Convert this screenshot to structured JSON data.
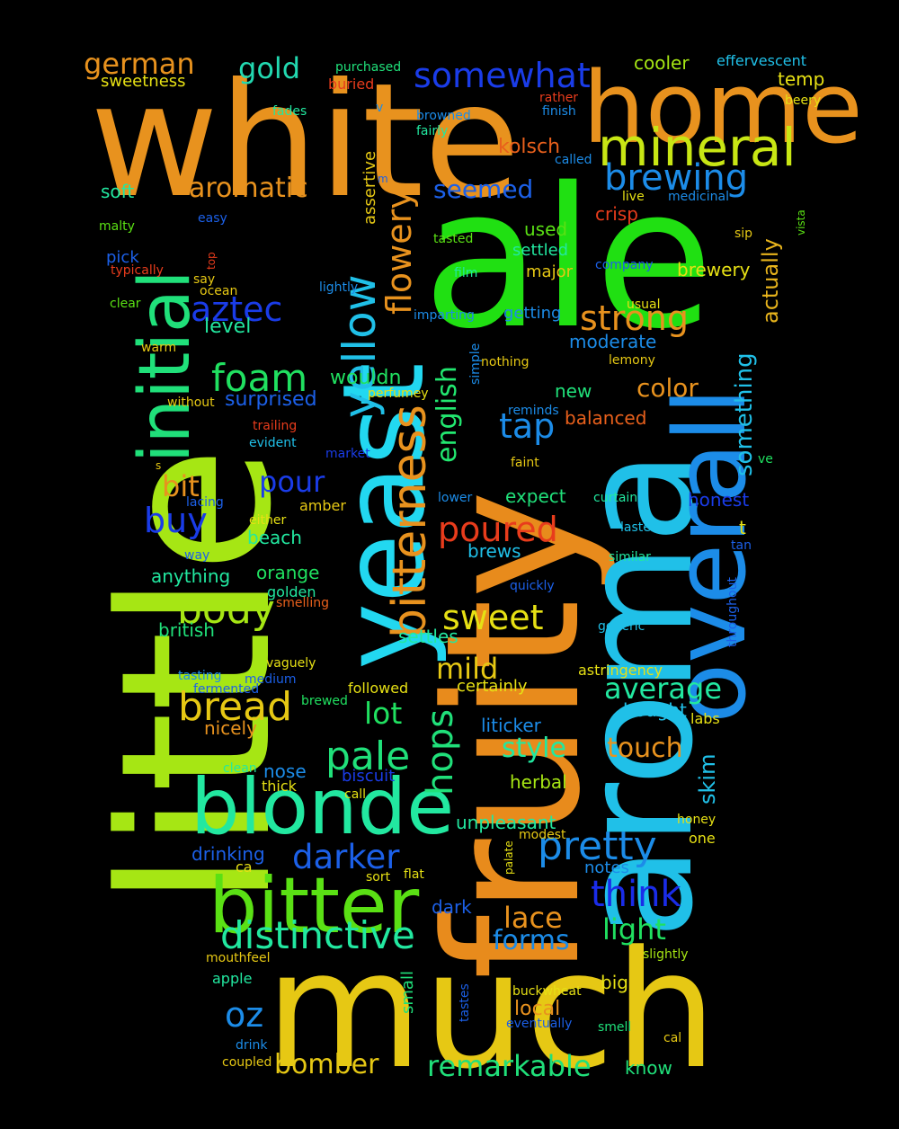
{
  "words": [
    {
      "text": "white",
      "color": "#e8921e"
    },
    {
      "text": "little",
      "color": "#a6e614"
    },
    {
      "text": "ale",
      "color": "#20e012"
    },
    {
      "text": "fruity",
      "color": "#e88b1c"
    },
    {
      "text": "aroma",
      "color": "#20c0e8"
    },
    {
      "text": "much",
      "color": "#e6c814"
    },
    {
      "text": "yeast",
      "color": "#22d8f0"
    },
    {
      "text": "home",
      "color": "#e8921e"
    },
    {
      "text": "overall",
      "color": "#1c8ce8"
    },
    {
      "text": "blonde",
      "color": "#22e8a0"
    },
    {
      "text": "bitter",
      "color": "#5ae014"
    },
    {
      "text": "initial",
      "color": "#20e07a"
    },
    {
      "text": "mineral",
      "color": "#c8e614"
    },
    {
      "text": "bitterness",
      "color": "#e8921e"
    },
    {
      "text": "yellow",
      "color": "#20c0e8"
    },
    {
      "text": "brewing",
      "color": "#1c8ce8"
    },
    {
      "text": "somewhat",
      "color": "#1a3ce8"
    },
    {
      "text": "distinctive",
      "color": "#22e8a0"
    },
    {
      "text": "foam",
      "color": "#20e060"
    },
    {
      "text": "pretty",
      "color": "#1c8ce8"
    },
    {
      "text": "darker",
      "color": "#1c60e8"
    },
    {
      "text": "bread",
      "color": "#e6c814"
    },
    {
      "text": "pale",
      "color": "#20e07a"
    },
    {
      "text": "strong",
      "color": "#e8921e"
    },
    {
      "text": "body",
      "color": "#a6e614"
    },
    {
      "text": "poured",
      "color": "#e83c1c"
    },
    {
      "text": "sweet",
      "color": "#e6e014"
    },
    {
      "text": "hops",
      "color": "#20e07a"
    },
    {
      "text": "think",
      "color": "#1a2ce8"
    },
    {
      "text": "average",
      "color": "#22e8a0"
    },
    {
      "text": "flowery",
      "color": "#e8921e"
    },
    {
      "text": "aztec",
      "color": "#1a3ce8"
    },
    {
      "text": "german",
      "color": "#e8921e"
    },
    {
      "text": "gold",
      "color": "#22d8b0"
    },
    {
      "text": "aromatic",
      "color": "#e8921e"
    },
    {
      "text": "english",
      "color": "#22e870"
    },
    {
      "text": "something",
      "color": "#20c0e8"
    },
    {
      "text": "oz",
      "color": "#1c8ce8"
    },
    {
      "text": "bomber",
      "color": "#e6c814"
    },
    {
      "text": "remarkable",
      "color": "#20e07a"
    },
    {
      "text": "light",
      "color": "#20e060"
    },
    {
      "text": "lace",
      "color": "#e8921e"
    },
    {
      "text": "forms",
      "color": "#1c8ce8"
    },
    {
      "text": "style",
      "color": "#22e8a0"
    },
    {
      "text": "touch",
      "color": "#e8921e"
    },
    {
      "text": "tap",
      "color": "#1c8ce8"
    },
    {
      "text": "mild",
      "color": "#e6c814"
    },
    {
      "text": "lot",
      "color": "#20e060"
    },
    {
      "text": "buy",
      "color": "#1a3ce8"
    },
    {
      "text": "pour",
      "color": "#1a3ce8"
    },
    {
      "text": "bit",
      "color": "#e8921e"
    },
    {
      "text": "seemed",
      "color": "#1c60e8"
    },
    {
      "text": "color",
      "color": "#e8921e"
    },
    {
      "text": "actually",
      "color": "#e8b41c"
    },
    {
      "text": "skim",
      "color": "#20c0e8"
    },
    {
      "text": "cooler",
      "color": "#a6e614"
    },
    {
      "text": "effervescent",
      "color": "#20c0e8"
    },
    {
      "text": "temp",
      "color": "#e6e014"
    },
    {
      "text": "sweetness",
      "color": "#e6e014"
    },
    {
      "text": "buried",
      "color": "#e83c1c"
    },
    {
      "text": "purchased",
      "color": "#20e07a"
    },
    {
      "text": "assertive",
      "color": "#e6c814"
    },
    {
      "text": "rather",
      "color": "#e83c1c"
    },
    {
      "text": "finish",
      "color": "#1c8ce8"
    },
    {
      "text": "beery",
      "color": "#e6e014"
    },
    {
      "text": "fades",
      "color": "#22e8a0"
    },
    {
      "text": "browned",
      "color": "#1c8ce8"
    },
    {
      "text": "fairly",
      "color": "#22e8a0"
    },
    {
      "text": "kolsch",
      "color": "#e8601c"
    },
    {
      "text": "called",
      "color": "#1c8ce8"
    },
    {
      "text": "soft",
      "color": "#22e8a0"
    },
    {
      "text": "crisp",
      "color": "#e83c1c"
    },
    {
      "text": "live",
      "color": "#e6e014"
    },
    {
      "text": "medicinal",
      "color": "#1c8ce8"
    },
    {
      "text": "vista",
      "color": "#5ae014"
    },
    {
      "text": "sip",
      "color": "#e6c814"
    },
    {
      "text": "malty",
      "color": "#5ae014"
    },
    {
      "text": "easy",
      "color": "#1c60e8"
    },
    {
      "text": "used",
      "color": "#5ae014"
    },
    {
      "text": "settled",
      "color": "#22e8a0"
    },
    {
      "text": "tasted",
      "color": "#5ae014"
    },
    {
      "text": "brewery",
      "color": "#e6e014"
    },
    {
      "text": "major",
      "color": "#e6c814"
    },
    {
      "text": "company",
      "color": "#1c60e8"
    },
    {
      "text": "film",
      "color": "#22e8a0"
    },
    {
      "text": "pick",
      "color": "#1c60e8"
    },
    {
      "text": "typically",
      "color": "#e83c1c"
    },
    {
      "text": "top",
      "color": "#e83c1c"
    },
    {
      "text": "say",
      "color": "#e6c814"
    },
    {
      "text": "ocean",
      "color": "#e6c814"
    },
    {
      "text": "lightly",
      "color": "#1c8ce8"
    },
    {
      "text": "clear",
      "color": "#5ae014"
    },
    {
      "text": "level",
      "color": "#22e8a0"
    },
    {
      "text": "imparting",
      "color": "#1c8ce8"
    },
    {
      "text": "getting",
      "color": "#1c8ce8"
    },
    {
      "text": "usual",
      "color": "#e6e014"
    },
    {
      "text": "warm",
      "color": "#e6c814"
    },
    {
      "text": "moderate",
      "color": "#1c8ce8"
    },
    {
      "text": "simple",
      "color": "#1c8ce8"
    },
    {
      "text": "nothing",
      "color": "#e6c814"
    },
    {
      "text": "lemony",
      "color": "#e6c814"
    },
    {
      "text": "wouldn",
      "color": "#20e060"
    },
    {
      "text": "perfumey",
      "color": "#e6e014"
    },
    {
      "text": "surprised",
      "color": "#1c60e8"
    },
    {
      "text": "without",
      "color": "#e6c814"
    },
    {
      "text": "new",
      "color": "#20e07a"
    },
    {
      "text": "reminds",
      "color": "#1c8ce8"
    },
    {
      "text": "balanced",
      "color": "#e8601c"
    },
    {
      "text": "trailing",
      "color": "#e83c1c"
    },
    {
      "text": "evident",
      "color": "#20c0e8"
    },
    {
      "text": "market",
      "color": "#1a3ce8"
    },
    {
      "text": "faint",
      "color": "#e6c814"
    },
    {
      "text": "ve",
      "color": "#20e060"
    },
    {
      "text": "s",
      "color": "#e6c814"
    },
    {
      "text": "lacing",
      "color": "#1c60e8"
    },
    {
      "text": "expect",
      "color": "#20e07a"
    },
    {
      "text": "curtain",
      "color": "#22e8a0"
    },
    {
      "text": "honest",
      "color": "#1a3ce8"
    },
    {
      "text": "lower",
      "color": "#1c8ce8"
    },
    {
      "text": "amber",
      "color": "#e6c814"
    },
    {
      "text": "either",
      "color": "#e6e014"
    },
    {
      "text": "lasted",
      "color": "#20c0e8"
    },
    {
      "text": "t",
      "color": "#e6e014"
    },
    {
      "text": "beach",
      "color": "#22e8a0"
    },
    {
      "text": "brews",
      "color": "#20c0e8"
    },
    {
      "text": "tan",
      "color": "#1c60e8"
    },
    {
      "text": "way",
      "color": "#1c60e8"
    },
    {
      "text": "similar",
      "color": "#22e8a0"
    },
    {
      "text": "anything",
      "color": "#22e8a0"
    },
    {
      "text": "orange",
      "color": "#20e060"
    },
    {
      "text": "throughout",
      "color": "#1c60e8"
    },
    {
      "text": "golden",
      "color": "#22e8a0"
    },
    {
      "text": "smelling",
      "color": "#e8601c"
    },
    {
      "text": "quickly",
      "color": "#1c60e8"
    },
    {
      "text": "british",
      "color": "#20e07a"
    },
    {
      "text": "generic",
      "color": "#20c0e8"
    },
    {
      "text": "settles",
      "color": "#22e8a0"
    },
    {
      "text": "vaguely",
      "color": "#e6e014"
    },
    {
      "text": "tasting",
      "color": "#1c8ce8"
    },
    {
      "text": "medium",
      "color": "#1c60e8"
    },
    {
      "text": "fermented",
      "color": "#1c60e8"
    },
    {
      "text": "astringency",
      "color": "#e6e014"
    },
    {
      "text": "followed",
      "color": "#e6e014"
    },
    {
      "text": "certainly",
      "color": "#e6e014"
    },
    {
      "text": "brewed",
      "color": "#20e060"
    },
    {
      "text": "bought",
      "color": "#20c0e8"
    },
    {
      "text": "labs",
      "color": "#e6e014"
    },
    {
      "text": "nicely",
      "color": "#e8921e"
    },
    {
      "text": "liticker",
      "color": "#1c8ce8"
    },
    {
      "text": "clean",
      "color": "#22e8a0"
    },
    {
      "text": "nose",
      "color": "#1c8ce8"
    },
    {
      "text": "herbal",
      "color": "#a6e614"
    },
    {
      "text": "biscuit",
      "color": "#1a3ce8"
    },
    {
      "text": "thick",
      "color": "#e6e014"
    },
    {
      "text": "call",
      "color": "#e6e014"
    },
    {
      "text": "unpleasant",
      "color": "#22e8a0"
    },
    {
      "text": "modest",
      "color": "#e6c814"
    },
    {
      "text": "honey",
      "color": "#e6e014"
    },
    {
      "text": "drinking",
      "color": "#1c60e8"
    },
    {
      "text": "one",
      "color": "#e6e014"
    },
    {
      "text": "ca",
      "color": "#e6e014"
    },
    {
      "text": "notes",
      "color": "#1c8ce8"
    },
    {
      "text": "palate",
      "color": "#e6e014"
    },
    {
      "text": "sort",
      "color": "#e6e014"
    },
    {
      "text": "flat",
      "color": "#e6e014"
    },
    {
      "text": "dark",
      "color": "#1c60e8"
    },
    {
      "text": "mouthfeel",
      "color": "#e6c814"
    },
    {
      "text": "slightly",
      "color": "#a6e614"
    },
    {
      "text": "apple",
      "color": "#22e8a0"
    },
    {
      "text": "small",
      "color": "#20e07a"
    },
    {
      "text": "tastes",
      "color": "#1c60e8"
    },
    {
      "text": "buckwheat",
      "color": "#e6e014"
    },
    {
      "text": "big",
      "color": "#e6e014"
    },
    {
      "text": "local",
      "color": "#e8921e"
    },
    {
      "text": "eventually",
      "color": "#1c60e8"
    },
    {
      "text": "smell",
      "color": "#20e07a"
    },
    {
      "text": "drink",
      "color": "#1c8ce8"
    },
    {
      "text": "cal",
      "color": "#e6c814"
    },
    {
      "text": "coupled",
      "color": "#e6c814"
    },
    {
      "text": "know",
      "color": "#20e07a"
    },
    {
      "text": "v",
      "color": "#1c8ce8"
    },
    {
      "text": "m",
      "color": "#1c60e8"
    }
  ]
}
